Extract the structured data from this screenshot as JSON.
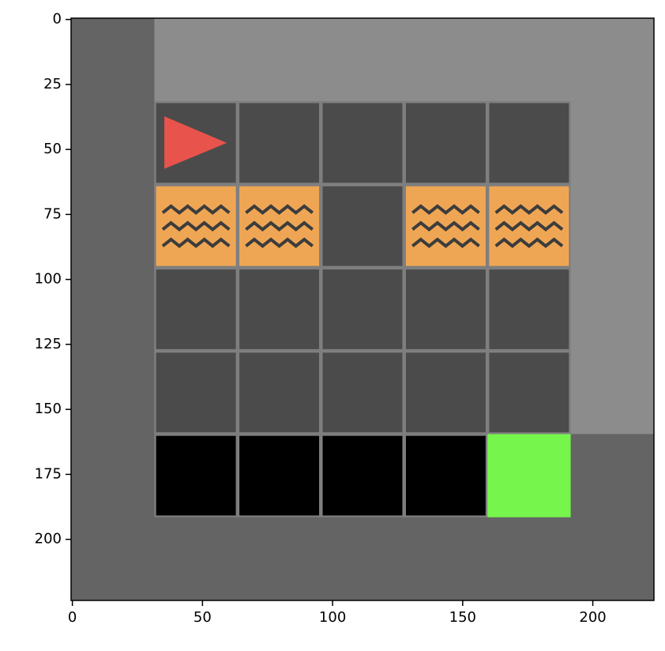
{
  "chart_data": {
    "type": "image",
    "xlim": [
      -0.5,
      223.5
    ],
    "ylim": [
      223.5,
      -0.5
    ],
    "xticks": [
      0,
      50,
      100,
      150,
      200
    ],
    "yticks": [
      0,
      25,
      50,
      75,
      100,
      125,
      150,
      175,
      200
    ]
  }
}
